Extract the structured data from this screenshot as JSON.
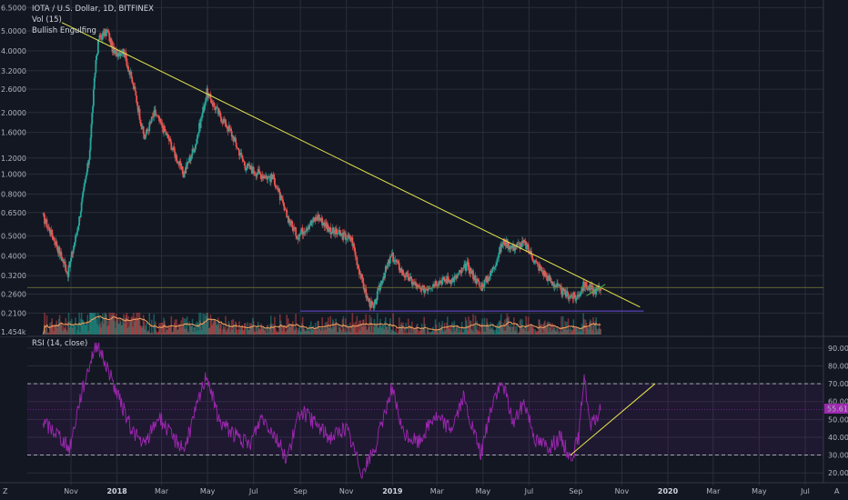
{
  "legend": {
    "symbol": "IOTA / U.S. Dollar, 1D, BITFINEX",
    "volume": "Vol (15)",
    "pattern": "Bullish Engulfing"
  },
  "rsi_legend": "RSI (14, close)",
  "rsi_value_badge": "55.61",
  "volume_badge": "1.454k",
  "corner_label": "Z",
  "corner_label_right": "A",
  "colors": {
    "background": "#131722",
    "grid": "#2a2e39",
    "candle_up": "#26a69a",
    "candle_down": "#ef5350",
    "trend_line": "#e6e64c",
    "support_line": "#6c4bd8",
    "rsi_line": "#9c27b0",
    "rsi_band": "#7b1fa2",
    "volume_ma": "#f7a35c"
  },
  "chart_data": [
    {
      "type": "candlestick",
      "title": "IOTA / U.S. Dollar, 1D, BITFINEX",
      "y_scale": "log",
      "ylim": [
        0.165,
        6.8
      ],
      "y_ticks": [
        "6.5000",
        "5.0000",
        "4.0000",
        "3.2000",
        "2.6000",
        "2.0000",
        "1.6000",
        "1.2000",
        "1.0000",
        "0.8000",
        "0.6500",
        "0.5000",
        "0.4000",
        "0.3200",
        "0.2600",
        "0.2100"
      ],
      "x_ticks": [
        "Nov",
        "2018",
        "Mar",
        "May",
        "Jul",
        "Sep",
        "Nov",
        "2019",
        "Mar",
        "May",
        "Jul",
        "Sep",
        "Nov",
        "2020",
        "Mar",
        "May",
        "Jul"
      ],
      "close_path": [
        {
          "date": "2017-09-25",
          "close": 0.62
        },
        {
          "date": "2017-10-10",
          "close": 0.48
        },
        {
          "date": "2017-10-28",
          "close": 0.33
        },
        {
          "date": "2017-11-10",
          "close": 0.55
        },
        {
          "date": "2017-11-25",
          "close": 1.2
        },
        {
          "date": "2017-12-04",
          "close": 3.6
        },
        {
          "date": "2017-12-08",
          "close": 4.6
        },
        {
          "date": "2017-12-19",
          "close": 5.0
        },
        {
          "date": "2017-12-28",
          "close": 3.9
        },
        {
          "date": "2018-01-10",
          "close": 4.0
        },
        {
          "date": "2018-01-25",
          "close": 2.5
        },
        {
          "date": "2018-02-06",
          "close": 1.5
        },
        {
          "date": "2018-02-20",
          "close": 2.0
        },
        {
          "date": "2018-03-10",
          "close": 1.5
        },
        {
          "date": "2018-03-30",
          "close": 1.0
        },
        {
          "date": "2018-04-15",
          "close": 1.4
        },
        {
          "date": "2018-04-30",
          "close": 2.5
        },
        {
          "date": "2018-05-15",
          "close": 2.0
        },
        {
          "date": "2018-06-01",
          "close": 1.6
        },
        {
          "date": "2018-06-20",
          "close": 1.1
        },
        {
          "date": "2018-07-10",
          "close": 1.0
        },
        {
          "date": "2018-07-28",
          "close": 0.95
        },
        {
          "date": "2018-08-12",
          "close": 0.65
        },
        {
          "date": "2018-08-28",
          "close": 0.5
        },
        {
          "date": "2018-09-08",
          "close": 0.55
        },
        {
          "date": "2018-09-24",
          "close": 0.62
        },
        {
          "date": "2018-10-12",
          "close": 0.53
        },
        {
          "date": "2018-10-28",
          "close": 0.5
        },
        {
          "date": "2018-11-08",
          "close": 0.48
        },
        {
          "date": "2018-11-18",
          "close": 0.34
        },
        {
          "date": "2018-11-28",
          "close": 0.25
        },
        {
          "date": "2018-12-07",
          "close": 0.22
        },
        {
          "date": "2018-12-17",
          "close": 0.3
        },
        {
          "date": "2018-12-31",
          "close": 0.4
        },
        {
          "date": "2019-01-15",
          "close": 0.33
        },
        {
          "date": "2019-02-08",
          "close": 0.27
        },
        {
          "date": "2019-03-01",
          "close": 0.3
        },
        {
          "date": "2019-03-25",
          "close": 0.31
        },
        {
          "date": "2019-04-10",
          "close": 0.36
        },
        {
          "date": "2019-04-28",
          "close": 0.28
        },
        {
          "date": "2019-05-12",
          "close": 0.33
        },
        {
          "date": "2019-05-28",
          "close": 0.47
        },
        {
          "date": "2019-06-10",
          "close": 0.44
        },
        {
          "date": "2019-06-25",
          "close": 0.46
        },
        {
          "date": "2019-07-12",
          "close": 0.36
        },
        {
          "date": "2019-07-30",
          "close": 0.3
        },
        {
          "date": "2019-08-18",
          "close": 0.26
        },
        {
          "date": "2019-09-02",
          "close": 0.25
        },
        {
          "date": "2019-09-12",
          "close": 0.29
        },
        {
          "date": "2019-09-25",
          "close": 0.27
        },
        {
          "date": "2019-10-05",
          "close": 0.28
        }
      ]
    },
    {
      "type": "line",
      "title": "RSI (14, close)",
      "ylim": [
        15,
        95
      ],
      "y_ticks": [
        "90.00",
        "80.00",
        "70.00",
        "60.00",
        "50.00",
        "40.00",
        "30.00",
        "20.00"
      ],
      "bands": [
        30,
        70
      ],
      "last_value": 55.61,
      "series": [
        {
          "date": "2017-09-25",
          "rsi": 48
        },
        {
          "date": "2017-10-15",
          "rsi": 42
        },
        {
          "date": "2017-10-30",
          "rsi": 33
        },
        {
          "date": "2017-11-12",
          "rsi": 60
        },
        {
          "date": "2017-11-26",
          "rsi": 82
        },
        {
          "date": "2017-12-05",
          "rsi": 93
        },
        {
          "date": "2017-12-20",
          "rsi": 78
        },
        {
          "date": "2018-01-05",
          "rsi": 60
        },
        {
          "date": "2018-01-20",
          "rsi": 45
        },
        {
          "date": "2018-02-06",
          "rsi": 35
        },
        {
          "date": "2018-02-25",
          "rsi": 52
        },
        {
          "date": "2018-03-15",
          "rsi": 40
        },
        {
          "date": "2018-04-01",
          "rsi": 34
        },
        {
          "date": "2018-04-20",
          "rsi": 62
        },
        {
          "date": "2018-04-30",
          "rsi": 76
        },
        {
          "date": "2018-05-15",
          "rsi": 50
        },
        {
          "date": "2018-06-05",
          "rsi": 42
        },
        {
          "date": "2018-06-25",
          "rsi": 35
        },
        {
          "date": "2018-07-12",
          "rsi": 52
        },
        {
          "date": "2018-07-28",
          "rsi": 42
        },
        {
          "date": "2018-08-14",
          "rsi": 28
        },
        {
          "date": "2018-09-01",
          "rsi": 55
        },
        {
          "date": "2018-09-20",
          "rsi": 48
        },
        {
          "date": "2018-10-10",
          "rsi": 40
        },
        {
          "date": "2018-11-01",
          "rsi": 45
        },
        {
          "date": "2018-11-22",
          "rsi": 20
        },
        {
          "date": "2018-12-10",
          "rsi": 35
        },
        {
          "date": "2018-12-31",
          "rsi": 68
        },
        {
          "date": "2019-01-15",
          "rsi": 42
        },
        {
          "date": "2019-02-05",
          "rsi": 37
        },
        {
          "date": "2019-02-25",
          "rsi": 52
        },
        {
          "date": "2019-03-20",
          "rsi": 45
        },
        {
          "date": "2019-04-05",
          "rsi": 62
        },
        {
          "date": "2019-04-28",
          "rsi": 30
        },
        {
          "date": "2019-05-15",
          "rsi": 62
        },
        {
          "date": "2019-05-28",
          "rsi": 70
        },
        {
          "date": "2019-06-10",
          "rsi": 48
        },
        {
          "date": "2019-06-25",
          "rsi": 60
        },
        {
          "date": "2019-07-10",
          "rsi": 38
        },
        {
          "date": "2019-07-28",
          "rsi": 35
        },
        {
          "date": "2019-08-12",
          "rsi": 40
        },
        {
          "date": "2019-08-25",
          "rsi": 28
        },
        {
          "date": "2019-09-05",
          "rsi": 40
        },
        {
          "date": "2019-09-12",
          "rsi": 76
        },
        {
          "date": "2019-09-20",
          "rsi": 45
        },
        {
          "date": "2019-10-05",
          "rsi": 55.6
        }
      ]
    }
  ]
}
